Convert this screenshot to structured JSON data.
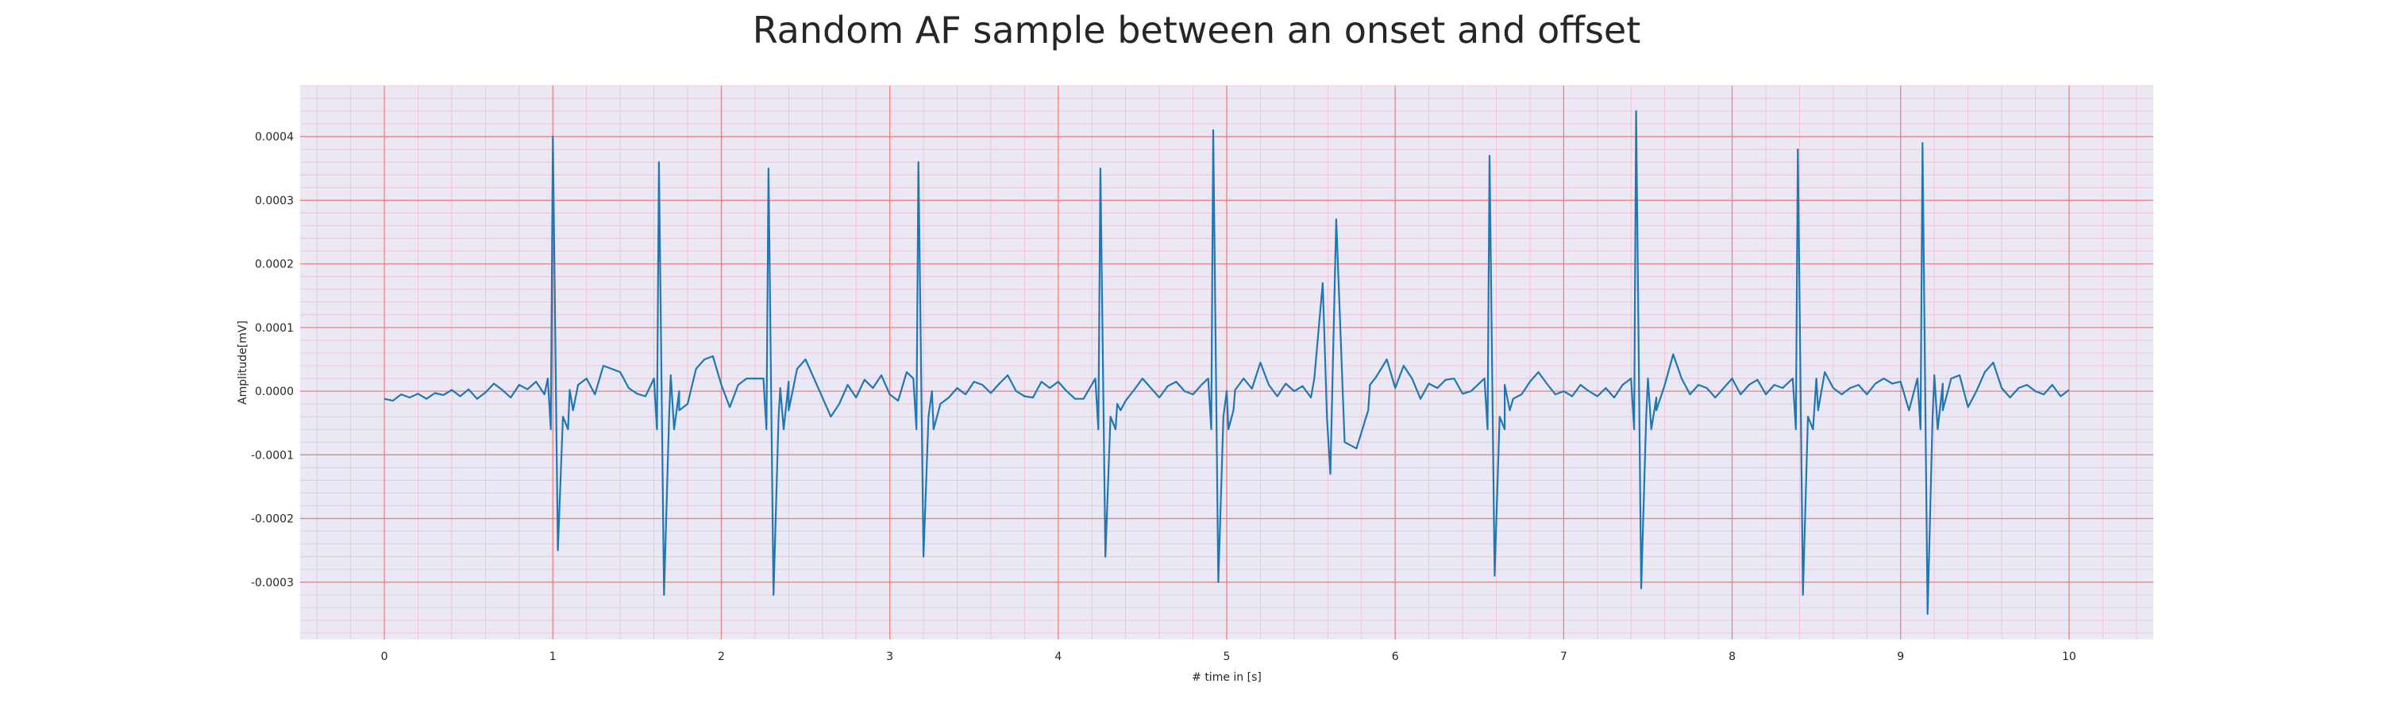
{
  "chart_data": {
    "type": "line",
    "title": "Random AF sample between an onset and offset",
    "xlabel": "# time in [s]",
    "ylabel": "Amplitude[mV]",
    "xlim": [
      -0.5,
      10.5
    ],
    "ylim": [
      -0.00039,
      0.00048
    ],
    "xticks": [
      0,
      1,
      2,
      3,
      4,
      5,
      6,
      7,
      8,
      9,
      10
    ],
    "xtick_labels": [
      "0",
      "1",
      "2",
      "3",
      "4",
      "5",
      "6",
      "7",
      "8",
      "9",
      "10"
    ],
    "yticks": [
      -0.0003,
      -0.0002,
      -0.0001,
      0.0,
      0.0001,
      0.0002,
      0.0003,
      0.0004
    ],
    "ytick_labels": [
      "-0.0003",
      "-0.0002",
      "-0.0001",
      "0.0000",
      "0.0001",
      "0.0002",
      "0.0003",
      "0.0004"
    ],
    "grid": true,
    "minor_grid": true,
    "colors": {
      "line": "#1f77b4",
      "background": "#eae8f4",
      "major_grid": "#f08080",
      "minor_grid": "#f2bcc8"
    },
    "series": [
      {
        "beats": [
          {
            "t": 1.0,
            "r": 0.0004,
            "s": -0.00025
          },
          {
            "t": 1.63,
            "r": 0.00036,
            "s": -0.00032
          },
          {
            "t": 2.28,
            "r": 0.00035,
            "s": -0.00032
          },
          {
            "t": 3.17,
            "r": 0.00036,
            "s": -0.00026
          },
          {
            "t": 4.25,
            "r": 0.00035,
            "s": -0.00026
          },
          {
            "t": 4.92,
            "r": 0.00041,
            "s": -0.0003
          },
          {
            "t": 6.56,
            "r": 0.00037,
            "s": -0.00029
          },
          {
            "t": 7.43,
            "r": 0.00044,
            "s": -0.00031
          },
          {
            "t": 8.39,
            "r": 0.00038,
            "s": -0.00032
          },
          {
            "t": 9.13,
            "r": 0.00039,
            "s": -0.00035
          }
        ],
        "ectopic": {
          "t": 5.6,
          "peaks": [
            0.00017,
            0.00027
          ],
          "trough": -0.00013,
          "after": -9e-05
        },
        "x": [
          0.0,
          0.05,
          0.1,
          0.15,
          0.2,
          0.25,
          0.3,
          0.35,
          0.4,
          0.45,
          0.5,
          0.55,
          0.6,
          0.65,
          0.7,
          0.75,
          0.8,
          0.85,
          0.9,
          0.95,
          1.1,
          1.15,
          1.2,
          1.25,
          1.3,
          1.35,
          1.4,
          1.45,
          1.5,
          1.55,
          1.7,
          1.75,
          1.8,
          1.85,
          1.9,
          1.95,
          2.0,
          2.05,
          2.1,
          2.15,
          2.35,
          2.4,
          2.45,
          2.5,
          2.55,
          2.6,
          2.65,
          2.7,
          2.75,
          2.8,
          2.85,
          2.9,
          2.95,
          3.0,
          3.05,
          3.1,
          3.25,
          3.3,
          3.35,
          3.4,
          3.45,
          3.5,
          3.55,
          3.6,
          3.65,
          3.7,
          3.75,
          3.8,
          3.85,
          3.9,
          3.95,
          4.0,
          4.05,
          4.1,
          4.15,
          4.35,
          4.4,
          4.45,
          4.5,
          4.55,
          4.6,
          4.65,
          4.7,
          4.75,
          4.8,
          4.85,
          5.0,
          5.05,
          5.1,
          5.15,
          5.2,
          5.25,
          5.3,
          5.35,
          5.4,
          5.45,
          5.5,
          5.85,
          5.9,
          5.95,
          6.0,
          6.05,
          6.1,
          6.15,
          6.2,
          6.25,
          6.3,
          6.35,
          6.4,
          6.45,
          6.65,
          6.7,
          6.75,
          6.8,
          6.85,
          6.9,
          6.95,
          7.0,
          7.05,
          7.1,
          7.15,
          7.2,
          7.25,
          7.3,
          7.35,
          7.5,
          7.55,
          7.6,
          7.65,
          7.7,
          7.75,
          7.8,
          7.85,
          7.9,
          7.95,
          8.0,
          8.05,
          8.1,
          8.15,
          8.2,
          8.25,
          8.3,
          8.5,
          8.55,
          8.6,
          8.65,
          8.7,
          8.75,
          8.8,
          8.85,
          8.9,
          8.95,
          9.0,
          9.05,
          9.2,
          9.25,
          9.3,
          9.35,
          9.4,
          9.45,
          9.5,
          9.55,
          9.6,
          9.65,
          9.7,
          9.75,
          9.8,
          9.85,
          9.9,
          9.95,
          10.0
        ],
        "y": [
          -1.2e-05,
          -1.5e-05,
          -5e-06,
          -1e-05,
          -4e-06,
          -1.2e-05,
          -3e-06,
          -6e-06,
          2e-06,
          -8e-06,
          3e-06,
          -1.2e-05,
          -2e-06,
          1.2e-05,
          2e-06,
          -1e-05,
          1e-05,
          3e-06,
          1.5e-05,
          -5e-06,
          2e-06,
          1e-05,
          2e-05,
          -5e-06,
          4e-05,
          3.5e-05,
          3e-05,
          5e-06,
          -4e-06,
          -8e-06,
          2.5e-05,
          0.0,
          -2e-05,
          3.5e-05,
          5e-05,
          5.5e-05,
          1e-05,
          -2.5e-05,
          1e-05,
          2e-05,
          5e-06,
          1.5e-05,
          3.5e-05,
          5e-05,
          2e-05,
          -1e-05,
          -4e-05,
          -2e-05,
          1e-05,
          -1e-05,
          1.8e-05,
          5e-06,
          2.5e-05,
          -5e-06,
          -1.5e-05,
          3e-05,
          0.0,
          -2e-05,
          -1e-05,
          5e-06,
          -5e-06,
          1.5e-05,
          1e-05,
          -3e-06,
          1.2e-05,
          2.5e-05,
          0.0,
          -8e-06,
          -1e-05,
          1.5e-05,
          5e-06,
          1.5e-05,
          0.0,
          -1.2e-05,
          -1.2e-05,
          -2e-05,
          -1.5e-05,
          2e-06,
          2e-05,
          5e-06,
          -1e-05,
          8e-06,
          1.5e-05,
          0.0,
          -5e-06,
          1e-05,
          0.0,
          2e-06,
          2e-05,
          4e-06,
          4.5e-05,
          1e-05,
          -8e-06,
          1.2e-05,
          0.0,
          8e-06,
          -1e-05,
          1e-05,
          2.8e-05,
          5e-05,
          5e-06,
          4e-05,
          2e-05,
          -1.2e-05,
          1.2e-05,
          5e-06,
          1.8e-05,
          2e-05,
          -4e-06,
          0.0,
          1e-05,
          -1.2e-05,
          -5e-06,
          1.5e-05,
          3e-05,
          1.2e-05,
          -5e-06,
          0.0,
          -8e-06,
          1e-05,
          0.0,
          -8e-06,
          5e-06,
          -1e-05,
          1e-05,
          2e-05,
          -1e-05,
          1e-05,
          5.8e-05,
          2e-05,
          -5e-06,
          1e-05,
          5e-06,
          -1e-05,
          5e-06,
          2e-05,
          -5e-06,
          1e-05,
          1.8e-05,
          -5e-06,
          1e-05,
          5e-06,
          2e-05,
          3e-05,
          5e-06,
          -5e-06,
          5e-06,
          1e-05,
          -5e-06,
          1.2e-05,
          2e-05,
          1.2e-05,
          1.5e-05,
          -3e-05,
          2.5e-05,
          1.2e-05,
          2e-05,
          2.5e-05,
          -2.5e-05,
          0.0,
          3e-05,
          4.5e-05,
          5e-06,
          -1e-05,
          5e-06,
          1e-05,
          0.0,
          -5e-06,
          1e-05,
          -8e-06,
          2e-06
        ]
      }
    ]
  }
}
